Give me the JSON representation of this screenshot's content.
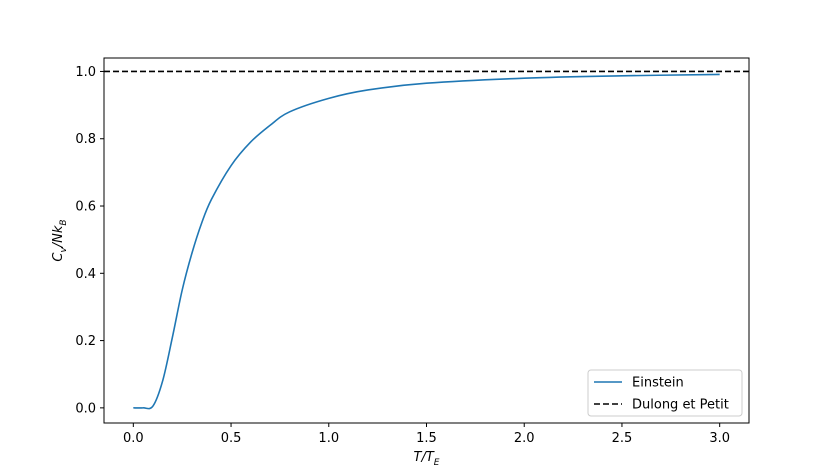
{
  "chart_data": {
    "type": "line",
    "xlabel": {
      "main": "T/T",
      "sub": "E"
    },
    "ylabel": {
      "main": "C",
      "sub1": "v",
      "mid": "/Nk",
      "sub2": "B"
    },
    "xlim": [
      -0.15,
      3.15
    ],
    "ylim": [
      -0.045,
      1.04
    ],
    "x_ticks": [
      0.0,
      0.5,
      1.0,
      1.5,
      2.0,
      2.5,
      3.0
    ],
    "x_tick_labels": [
      "0.0",
      "0.5",
      "1.0",
      "1.5",
      "2.0",
      "2.5",
      "3.0"
    ],
    "y_ticks": [
      0.0,
      0.2,
      0.4,
      0.6,
      0.8,
      1.0
    ],
    "y_tick_labels": [
      "0.0",
      "0.2",
      "0.4",
      "0.6",
      "0.8",
      "1.0"
    ],
    "grid": false,
    "legend_position": "bottom-right",
    "series": [
      {
        "name": "Einstein",
        "style": "solid",
        "color": "#1f77b4",
        "x": [
          0.0,
          0.05,
          0.1,
          0.15,
          0.2,
          0.25,
          0.3,
          0.35,
          0.4,
          0.5,
          0.6,
          0.7,
          0.8,
          1.0,
          1.2,
          1.5,
          2.0,
          2.5,
          3.0
        ],
        "y": [
          0.0,
          0.0,
          0.005,
          0.08,
          0.21,
          0.35,
          0.46,
          0.55,
          0.62,
          0.72,
          0.79,
          0.84,
          0.88,
          0.92,
          0.945,
          0.965,
          0.98,
          0.987,
          0.991
        ]
      },
      {
        "name": "Dulong et Petit",
        "style": "dashed",
        "color": "#000000",
        "x": [
          -0.15,
          3.15
        ],
        "y": [
          1.0,
          1.0
        ]
      }
    ]
  }
}
